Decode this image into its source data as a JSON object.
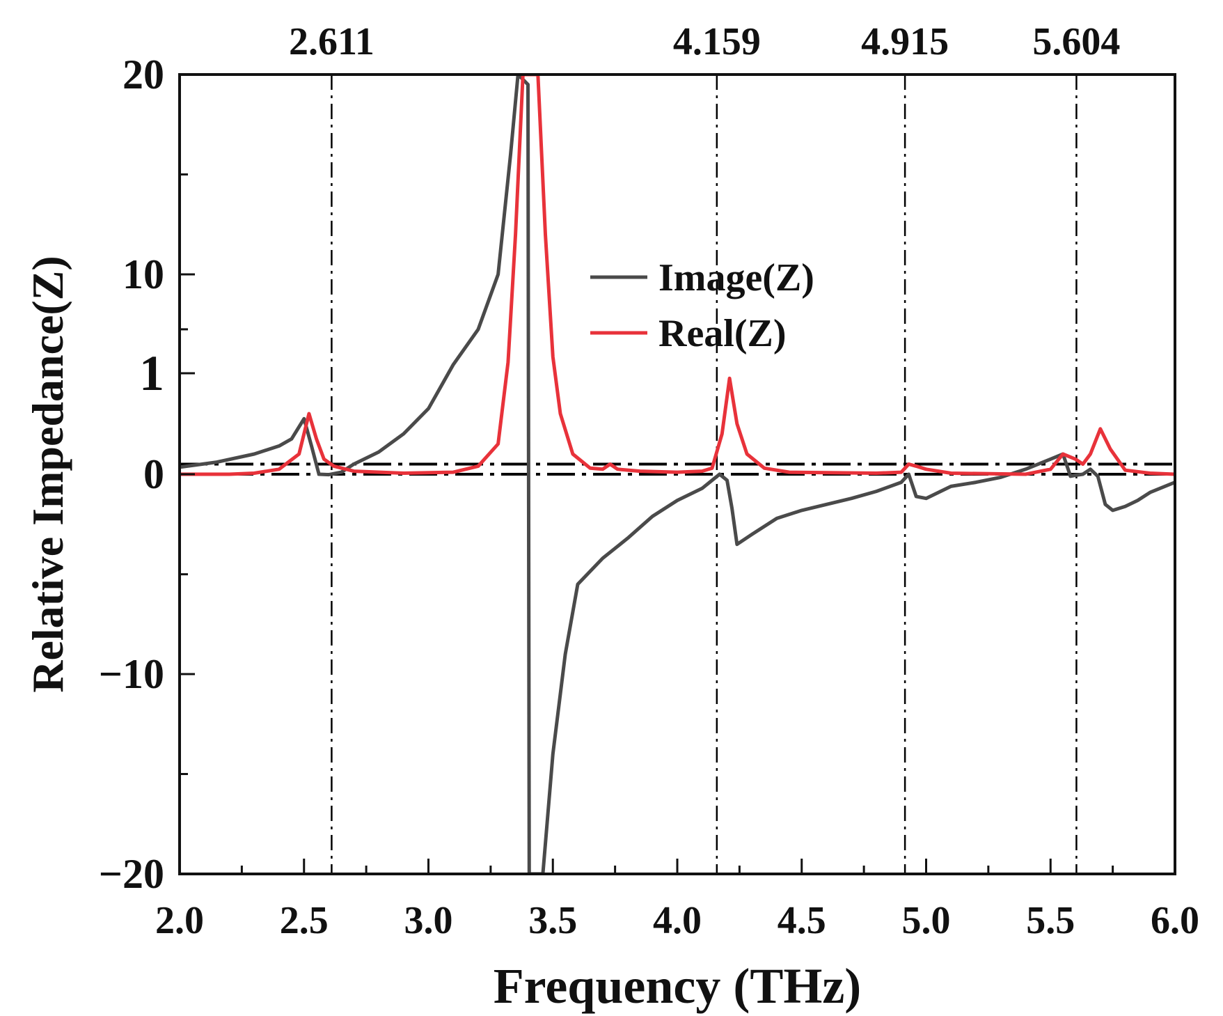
{
  "chart_data": {
    "type": "line",
    "title": "",
    "xlabel": "Frequency (THz)",
    "ylabel": "Relative Impedance(Z)",
    "xlim": [
      2.0,
      6.0
    ],
    "ylim": [
      -20,
      20
    ],
    "x_ticks": [
      2.0,
      2.5,
      3.0,
      3.5,
      4.0,
      4.5,
      5.0,
      5.5,
      6.0
    ],
    "x_tick_labels": [
      "2.0",
      "2.5",
      "3.0",
      "3.5",
      "4.0",
      "4.5",
      "5.0",
      "5.5",
      "6.0"
    ],
    "y_ticks": [
      -20,
      -10,
      0,
      1,
      10,
      20
    ],
    "y_tick_labels": [
      "−20",
      "−10",
      "0",
      "1",
      "10",
      "20"
    ],
    "y_axis_note": "broken scale: between -1 and 1 the axis is expanded",
    "grid": false,
    "legend": {
      "position": "center",
      "entries": [
        "Image(Z)",
        "Real(Z)"
      ]
    },
    "reference_lines": {
      "vertical": [
        {
          "x": 2.611,
          "label": "2.611"
        },
        {
          "x": 4.159,
          "label": "4.159"
        },
        {
          "x": 4.915,
          "label": "4.915"
        },
        {
          "x": 5.604,
          "label": "5.604"
        }
      ],
      "horizontal": [
        0,
        0.1
      ]
    },
    "series": [
      {
        "name": "Image(Z)",
        "color": "#4a4a4a",
        "points": [
          [
            2.0,
            0.07
          ],
          [
            2.15,
            0.12
          ],
          [
            2.3,
            0.2
          ],
          [
            2.4,
            0.28
          ],
          [
            2.45,
            0.35
          ],
          [
            2.5,
            0.55
          ],
          [
            2.53,
            0.28
          ],
          [
            2.56,
            0.0
          ],
          [
            2.6,
            -0.02
          ],
          [
            2.65,
            0.02
          ],
          [
            2.7,
            0.1
          ],
          [
            2.8,
            0.22
          ],
          [
            2.9,
            0.4
          ],
          [
            3.0,
            0.65
          ],
          [
            3.1,
            1.8
          ],
          [
            3.2,
            5.0
          ],
          [
            3.28,
            10.0
          ],
          [
            3.33,
            16.0
          ],
          [
            3.36,
            20.0
          ],
          [
            3.4,
            19.5
          ],
          [
            3.405,
            -20.0
          ],
          [
            3.46,
            -20.0
          ],
          [
            3.5,
            -14.0
          ],
          [
            3.55,
            -9.0
          ],
          [
            3.6,
            -5.5
          ],
          [
            3.7,
            -4.2
          ],
          [
            3.8,
            -3.2
          ],
          [
            3.9,
            -2.1
          ],
          [
            4.0,
            -1.3
          ],
          [
            4.1,
            -0.7
          ],
          [
            4.17,
            0.0
          ],
          [
            4.2,
            -0.3
          ],
          [
            4.22,
            -1.7
          ],
          [
            4.24,
            -3.5
          ],
          [
            4.3,
            -3.0
          ],
          [
            4.4,
            -2.2
          ],
          [
            4.5,
            -1.8
          ],
          [
            4.6,
            -1.5
          ],
          [
            4.7,
            -1.2
          ],
          [
            4.8,
            -0.85
          ],
          [
            4.9,
            -0.4
          ],
          [
            4.93,
            0.0
          ],
          [
            4.96,
            -1.1
          ],
          [
            5.0,
            -1.2
          ],
          [
            5.1,
            -0.6
          ],
          [
            5.2,
            -0.4
          ],
          [
            5.3,
            -0.15
          ],
          [
            5.4,
            0.05
          ],
          [
            5.5,
            0.15
          ],
          [
            5.55,
            0.2
          ],
          [
            5.58,
            -0.1
          ],
          [
            5.6,
            -0.05
          ],
          [
            5.63,
            0.0
          ],
          [
            5.66,
            0.05
          ],
          [
            5.69,
            -0.1
          ],
          [
            5.72,
            -1.5
          ],
          [
            5.75,
            -1.8
          ],
          [
            5.8,
            -1.6
          ],
          [
            5.85,
            -1.3
          ],
          [
            5.9,
            -0.9
          ],
          [
            6.0,
            -0.4
          ]
        ]
      },
      {
        "name": "Real(Z)",
        "color": "#e8323a",
        "points": [
          [
            2.0,
            0.0
          ],
          [
            2.2,
            0.0
          ],
          [
            2.3,
            0.01
          ],
          [
            2.4,
            0.05
          ],
          [
            2.48,
            0.2
          ],
          [
            2.52,
            0.6
          ],
          [
            2.55,
            0.35
          ],
          [
            2.58,
            0.15
          ],
          [
            2.62,
            0.08
          ],
          [
            2.7,
            0.03
          ],
          [
            2.9,
            0.01
          ],
          [
            3.1,
            0.02
          ],
          [
            3.2,
            0.08
          ],
          [
            3.28,
            0.3
          ],
          [
            3.32,
            2.0
          ],
          [
            3.35,
            12.0
          ],
          [
            3.38,
            20.0
          ],
          [
            3.44,
            20.0
          ],
          [
            3.47,
            12.0
          ],
          [
            3.5,
            2.5
          ],
          [
            3.53,
            0.6
          ],
          [
            3.58,
            0.2
          ],
          [
            3.65,
            0.06
          ],
          [
            3.7,
            0.05
          ],
          [
            3.73,
            0.1
          ],
          [
            3.76,
            0.05
          ],
          [
            3.85,
            0.03
          ],
          [
            4.0,
            0.02
          ],
          [
            4.1,
            0.03
          ],
          [
            4.14,
            0.06
          ],
          [
            4.18,
            0.4
          ],
          [
            4.21,
            0.95
          ],
          [
            4.24,
            0.5
          ],
          [
            4.28,
            0.2
          ],
          [
            4.35,
            0.06
          ],
          [
            4.45,
            0.02
          ],
          [
            4.8,
            0.01
          ],
          [
            4.9,
            0.02
          ],
          [
            4.93,
            0.1
          ],
          [
            4.96,
            0.08
          ],
          [
            5.0,
            0.05
          ],
          [
            5.1,
            0.01
          ],
          [
            5.4,
            0.0
          ],
          [
            5.5,
            0.05
          ],
          [
            5.55,
            0.2
          ],
          [
            5.6,
            0.15
          ],
          [
            5.63,
            0.1
          ],
          [
            5.66,
            0.2
          ],
          [
            5.7,
            0.45
          ],
          [
            5.74,
            0.25
          ],
          [
            5.8,
            0.04
          ],
          [
            5.9,
            0.01
          ],
          [
            6.0,
            0.0
          ]
        ]
      }
    ]
  },
  "colors": {
    "image_series": "#4a4a4a",
    "real_series": "#e8323a",
    "axis": "#111111"
  }
}
